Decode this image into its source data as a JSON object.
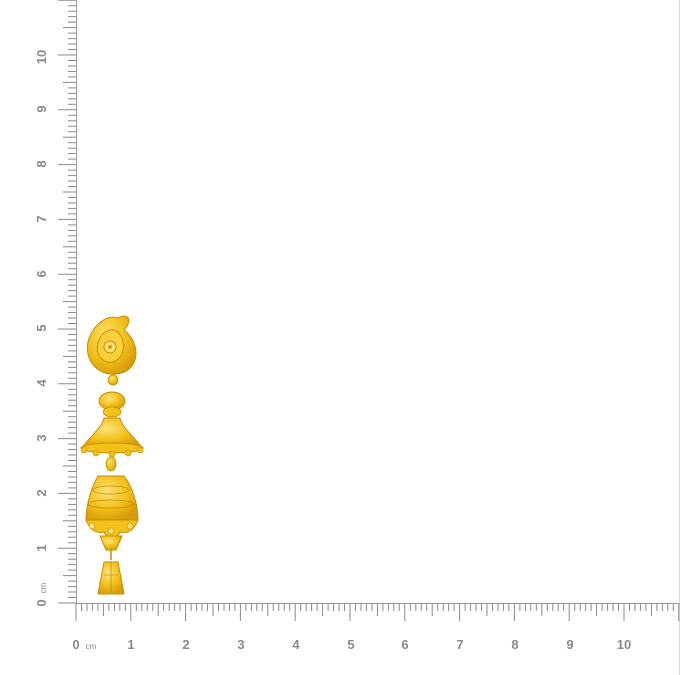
{
  "ruler": {
    "unit": "cm",
    "x_labels": [
      "0",
      "1",
      "2",
      "3",
      "4",
      "5",
      "6",
      "7",
      "8",
      "9",
      "10"
    ],
    "y_labels": [
      "0",
      "1",
      "2",
      "3",
      "4",
      "5",
      "6",
      "7",
      "8",
      "9",
      "10"
    ],
    "color": "#8a8a8a"
  },
  "product": {
    "icon": "gold-jhumka-earring-icon",
    "color_gold": "#f2c11a",
    "color_highlight": "#fde27a",
    "color_shadow": "#d79a08"
  }
}
